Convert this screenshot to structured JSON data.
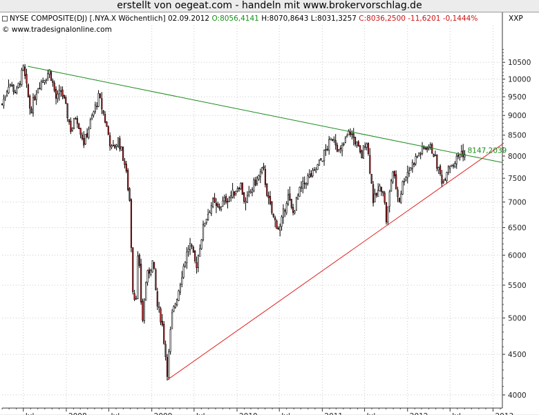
{
  "banner": "erstellt von oegeat.com  - handeln mit  www.brokervorschlag.de",
  "header": {
    "instrument": "NYSE COMPOSITE(DJ) [.NYA.X  Wöchentlich] 02.09.2012",
    "open": "O:8056,4141",
    "hlc": "H:8070,8643 L:8031,3257",
    "change": "C:8036,2500 -11,6201 -0,1444%",
    "currency": "XXP",
    "source": "© www.tradesignalonline.com"
  },
  "colors": {
    "up_candle": "#ffffff",
    "down_candle": "#c8242a",
    "outline": "#000000",
    "resistance": "#1a8a1a",
    "support": "#e02020",
    "grid": "#c8c8c8",
    "open_text": "#159015",
    "change_text": "#cc1111"
  },
  "chart_data": {
    "type": "candlestick",
    "scale": "log",
    "ylim": [
      3850,
      11000
    ],
    "yticks": [
      4000,
      4500,
      5000,
      5500,
      6000,
      6500,
      7000,
      7500,
      8000,
      8500,
      9000,
      9500,
      10000,
      10500
    ],
    "x_range": [
      "2007-04-01",
      "2013-02-10"
    ],
    "x_ticks": [
      {
        "date": "2007-07-01",
        "label": "Jul"
      },
      {
        "date": "2008-01-01",
        "label": "2008"
      },
      {
        "date": "2008-07-01",
        "label": "Jul"
      },
      {
        "date": "2009-01-01",
        "label": "2009"
      },
      {
        "date": "2009-07-01",
        "label": "Jul"
      },
      {
        "date": "2010-01-01",
        "label": "2010"
      },
      {
        "date": "2010-07-01",
        "label": "Jul"
      },
      {
        "date": "2011-01-01",
        "label": "2011"
      },
      {
        "date": "2011-07-01",
        "label": "Jul"
      },
      {
        "date": "2012-01-01",
        "label": "2012"
      },
      {
        "date": "2012-07-01",
        "label": "Jul"
      },
      {
        "date": "2013-01-01",
        "label": "2013"
      }
    ],
    "price_path": [
      [
        "2007-04-01",
        9300
      ],
      [
        "2007-05-01",
        9900
      ],
      [
        "2007-06-01",
        9600
      ],
      [
        "2007-07-01",
        10300
      ],
      [
        "2007-08-01",
        9100
      ],
      [
        "2007-09-01",
        9800
      ],
      [
        "2007-10-22",
        10250
      ],
      [
        "2007-11-20",
        9400
      ],
      [
        "2007-12-10",
        9700
      ],
      [
        "2008-01-22",
        8600
      ],
      [
        "2008-02-12",
        9000
      ],
      [
        "2008-03-17",
        8300
      ],
      [
        "2008-05-19",
        9500
      ],
      [
        "2008-06-10",
        9000
      ],
      [
        "2008-07-15",
        8100
      ],
      [
        "2008-08-11",
        8400
      ],
      [
        "2008-09-08",
        7800
      ],
      [
        "2008-09-29",
        7000
      ],
      [
        "2008-10-10",
        5500
      ],
      [
        "2008-10-24",
        5200
      ],
      [
        "2008-11-04",
        6100
      ],
      [
        "2008-11-21",
        4900
      ],
      [
        "2008-12-08",
        5600
      ],
      [
        "2009-01-06",
        5900
      ],
      [
        "2009-01-23",
        5200
      ],
      [
        "2009-02-13",
        4950
      ],
      [
        "2009-03-09",
        4250
      ],
      [
        "2009-03-27",
        5000
      ],
      [
        "2009-04-24",
        5400
      ],
      [
        "2009-05-22",
        5900
      ],
      [
        "2009-06-12",
        6200
      ],
      [
        "2009-07-10",
        5800
      ],
      [
        "2009-08-14",
        6600
      ],
      [
        "2009-09-18",
        7000
      ],
      [
        "2009-10-09",
        6850
      ],
      [
        "2009-11-13",
        7050
      ],
      [
        "2009-12-11",
        7150
      ],
      [
        "2010-01-15",
        7400
      ],
      [
        "2010-02-05",
        6950
      ],
      [
        "2010-03-12",
        7350
      ],
      [
        "2010-04-23",
        7700
      ],
      [
        "2010-05-14",
        7050
      ],
      [
        "2010-06-04",
        6700
      ],
      [
        "2010-07-02",
        6450
      ],
      [
        "2010-08-06",
        7150
      ],
      [
        "2010-08-27",
        6750
      ],
      [
        "2010-09-24",
        7200
      ],
      [
        "2010-10-29",
        7500
      ],
      [
        "2010-11-26",
        7600
      ],
      [
        "2010-12-31",
        7950
      ],
      [
        "2011-02-18",
        8500
      ],
      [
        "2011-03-16",
        8050
      ],
      [
        "2011-04-29",
        8600
      ],
      [
        "2011-05-27",
        8300
      ],
      [
        "2011-06-17",
        7950
      ],
      [
        "2011-07-08",
        8450
      ],
      [
        "2011-08-08",
        7000
      ],
      [
        "2011-08-26",
        7200
      ],
      [
        "2011-09-16",
        7350
      ],
      [
        "2011-10-03",
        6600
      ],
      [
        "2011-10-28",
        7700
      ],
      [
        "2011-11-25",
        7000
      ],
      [
        "2011-12-16",
        7500
      ],
      [
        "2012-01-20",
        7800
      ],
      [
        "2012-02-17",
        8050
      ],
      [
        "2012-03-30",
        8250
      ],
      [
        "2012-04-20",
        8100
      ],
      [
        "2012-05-11",
        7700
      ],
      [
        "2012-06-01",
        7400
      ],
      [
        "2012-06-22",
        7800
      ],
      [
        "2012-07-20",
        7850
      ],
      [
        "2012-08-17",
        8100
      ],
      [
        "2012-09-02",
        8036
      ]
    ],
    "last_close": 8036.25,
    "trendlines": [
      {
        "name": "resistance",
        "color": "#1a8a1a",
        "start": [
          "2007-07-20",
          10380
        ],
        "end": [
          "2013-02-10",
          7850
        ],
        "label": "8147,2039",
        "label_at": "2012-09-02"
      },
      {
        "name": "support",
        "color": "#e02020",
        "start": [
          "2009-03-09",
          4180
        ],
        "end": [
          "2013-02-10",
          8280
        ]
      }
    ],
    "grid": true,
    "legend": "none"
  }
}
